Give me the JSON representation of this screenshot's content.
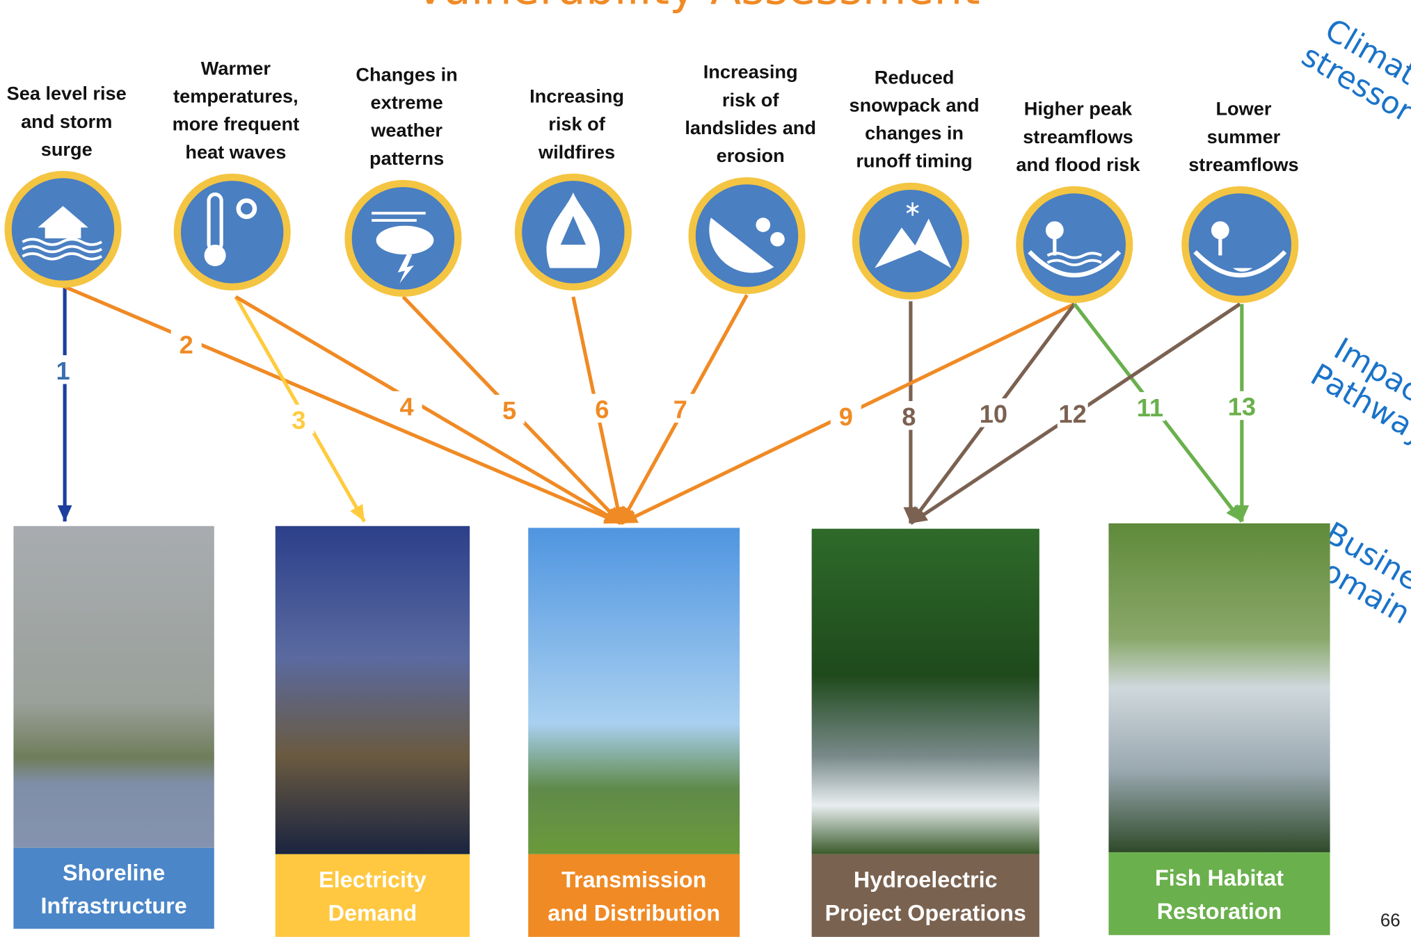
{
  "header": {
    "title": "Vulnerability Assessment"
  },
  "side_labels": [
    [
      "Climate",
      "stressor"
    ],
    [
      "Impact",
      "Pathway"
    ],
    [
      "Business",
      "Domain"
    ]
  ],
  "stressors": [
    {
      "label": [
        "Sea level rise",
        "and storm",
        "surge"
      ]
    },
    {
      "label": [
        "Warmer",
        "temperatures,",
        "more frequent",
        "heat waves"
      ]
    },
    {
      "label": [
        "Changes in",
        "extreme",
        "weather",
        "patterns"
      ]
    },
    {
      "label": [
        "Increasing",
        "risk of",
        "wildfires"
      ]
    },
    {
      "label": [
        "Increasing",
        "risk of",
        "landslides and",
        "erosion"
      ]
    },
    {
      "label": [
        "Reduced",
        "snowpack and",
        "changes in",
        "runoff timing"
      ]
    },
    {
      "label": [
        "Higher peak",
        "streamflows",
        "and flood risk"
      ]
    },
    {
      "label": [
        "Lower",
        "summer",
        "streamflows"
      ]
    }
  ],
  "pathways": [
    {
      "label": "1"
    },
    {
      "label": "2"
    },
    {
      "label": "3"
    },
    {
      "label": "4"
    },
    {
      "label": "5"
    },
    {
      "label": "6"
    },
    {
      "label": "7"
    },
    {
      "label": "8"
    },
    {
      "label": "9"
    },
    {
      "label": "10"
    },
    {
      "label": "11"
    },
    {
      "label": "12"
    },
    {
      "label": "13"
    }
  ],
  "domains": [
    {
      "label": [
        "Shoreline",
        "Infrastructure"
      ]
    },
    {
      "label": [
        "Electricity",
        "Demand"
      ]
    },
    {
      "label": [
        "Transmission",
        "and Distribution"
      ]
    },
    {
      "label": [
        "Hydroelectric",
        "Project Operations"
      ]
    },
    {
      "label": [
        "Fish Habitat",
        "Restoration"
      ]
    }
  ],
  "page_number": "66"
}
